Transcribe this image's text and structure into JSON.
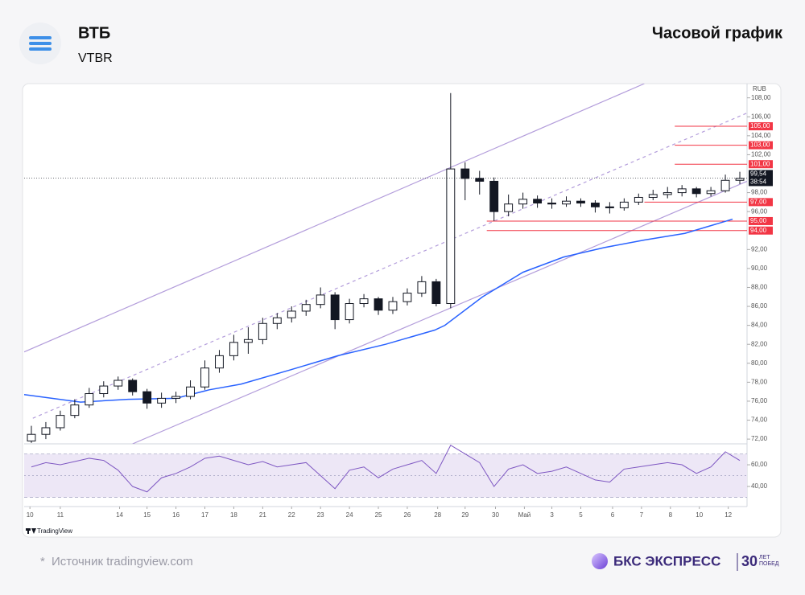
{
  "header": {
    "title": "ВТБ",
    "ticker": "VTBR",
    "chart_label": "Часовой график"
  },
  "chart_data": {
    "type": "candlestick",
    "currency": "RUB",
    "watermark": "TradingView",
    "up_color": "#ffffff",
    "down_color": "#131722",
    "edge_color": "#131722",
    "open": [
      71.8,
      72.5,
      73.2,
      74.5,
      75.6,
      76.8,
      77.6,
      78.2,
      77.0,
      75.8,
      76.3,
      76.5,
      77.5,
      79.5,
      80.8,
      82.2,
      82.5,
      84.2,
      84.8,
      85.5,
      86.2,
      87.2,
      84.6,
      86.3,
      86.8,
      85.6,
      86.5,
      87.4,
      88.6,
      86.3,
      100.5,
      99.5,
      99.2,
      96.0,
      96.8,
      97.3,
      96.9,
      96.8,
      97.1,
      96.9,
      96.5,
      96.4,
      97.0,
      97.5,
      97.8,
      98.0,
      98.4,
      97.9,
      98.2,
      99.3
    ],
    "high": [
      73.4,
      73.8,
      75.0,
      76.2,
      77.4,
      78.1,
      78.6,
      78.4,
      77.3,
      76.9,
      77.0,
      78.2,
      80.3,
      81.4,
      83.0,
      83.8,
      84.8,
      85.3,
      86.0,
      86.7,
      88.0,
      87.5,
      86.8,
      87.3,
      87.0,
      87.0,
      87.9,
      89.2,
      88.9,
      108.5,
      101.2,
      100.3,
      99.6,
      97.8,
      98.0,
      97.7,
      97.4,
      97.6,
      97.4,
      97.2,
      97.0,
      97.4,
      97.9,
      98.3,
      98.6,
      98.8,
      98.6,
      98.6,
      99.9,
      100.2
    ],
    "low": [
      71.6,
      72.0,
      72.9,
      74.2,
      75.3,
      76.4,
      77.2,
      76.6,
      75.2,
      75.3,
      75.8,
      76.2,
      77.2,
      79.0,
      80.3,
      81.0,
      82.0,
      83.6,
      84.3,
      85.0,
      85.8,
      83.6,
      84.2,
      85.9,
      85.1,
      85.2,
      86.1,
      87.0,
      86.0,
      85.8,
      97.2,
      97.8,
      95.0,
      95.5,
      96.3,
      96.4,
      96.3,
      96.5,
      96.5,
      95.9,
      95.8,
      96.1,
      96.7,
      97.2,
      97.4,
      97.6,
      97.5,
      97.6,
      98.0,
      98.9
    ],
    "close": [
      72.5,
      73.2,
      74.5,
      75.6,
      76.8,
      77.6,
      78.2,
      77.0,
      75.8,
      76.3,
      76.5,
      77.5,
      79.5,
      80.8,
      82.2,
      82.5,
      84.2,
      84.8,
      85.5,
      86.2,
      87.2,
      84.6,
      86.3,
      86.8,
      85.6,
      86.5,
      87.4,
      88.6,
      86.3,
      100.5,
      99.5,
      99.2,
      96.0,
      96.8,
      97.3,
      96.9,
      96.8,
      97.1,
      96.9,
      96.5,
      96.4,
      97.0,
      97.5,
      97.8,
      98.0,
      98.4,
      97.9,
      98.2,
      99.3,
      99.5
    ],
    "xlim": [
      0,
      50
    ],
    "ylim": [
      71.5,
      109.5
    ],
    "yticks": [
      {
        "value": 72,
        "label": "72,00"
      },
      {
        "value": 74,
        "label": "74,00"
      },
      {
        "value": 76,
        "label": "76,00"
      },
      {
        "value": 78,
        "label": "78,00"
      },
      {
        "value": 80,
        "label": "80,00"
      },
      {
        "value": 82,
        "label": "82,00"
      },
      {
        "value": 84,
        "label": "84,00"
      },
      {
        "value": 86,
        "label": "86,00"
      },
      {
        "value": 88,
        "label": "88,00"
      },
      {
        "value": 90,
        "label": "90,00"
      },
      {
        "value": 92,
        "label": "92,00"
      },
      {
        "value": 96,
        "label": "96,00"
      },
      {
        "value": 98,
        "label": "98,00"
      },
      {
        "value": 102,
        "label": "102,00"
      },
      {
        "value": 104,
        "label": "104,00"
      },
      {
        "value": 106,
        "label": "106,00"
      },
      {
        "value": 108,
        "label": "108,00"
      }
    ],
    "xticks": [
      {
        "value": 0.4,
        "label": "10"
      },
      {
        "value": 2.5,
        "label": "11"
      },
      {
        "value": 6.6,
        "label": "14"
      },
      {
        "value": 8.5,
        "label": "15"
      },
      {
        "value": 10.5,
        "label": "16"
      },
      {
        "value": 12.5,
        "label": "17"
      },
      {
        "value": 14.5,
        "label": "18"
      },
      {
        "value": 16.5,
        "label": "21"
      },
      {
        "value": 18.5,
        "label": "22"
      },
      {
        "value": 20.5,
        "label": "23"
      },
      {
        "value": 22.5,
        "label": "24"
      },
      {
        "value": 24.5,
        "label": "25"
      },
      {
        "value": 26.5,
        "label": "26"
      },
      {
        "value": 28.6,
        "label": "28"
      },
      {
        "value": 30.5,
        "label": "29"
      },
      {
        "value": 32.6,
        "label": "30"
      },
      {
        "value": 34.6,
        "label": "Май"
      },
      {
        "value": 36.5,
        "label": "3"
      },
      {
        "value": 38.5,
        "label": "5"
      },
      {
        "value": 40.7,
        "label": "6"
      },
      {
        "value": 42.7,
        "label": "7"
      },
      {
        "value": 44.7,
        "label": "8"
      },
      {
        "value": 46.7,
        "label": "10"
      },
      {
        "value": 48.7,
        "label": "12"
      }
    ],
    "moving_average": {
      "color": "#2962ff",
      "x": [
        0,
        3.9,
        7.2,
        10.5,
        12.8,
        15,
        18.4,
        21.7,
        25,
        28.4,
        29.1,
        31.7,
        34.5,
        37.3,
        40.1,
        42.9,
        45.7,
        49
      ],
      "values": [
        76.7,
        75.9,
        76.2,
        76.3,
        77.2,
        77.8,
        79.3,
        80.8,
        82,
        83.5,
        84,
        87,
        89.6,
        91.2,
        92.2,
        93,
        93.7,
        95.2
      ]
    },
    "channel": {
      "color": "#b39ddb",
      "lines": [
        {
          "x": [
            0,
            42.9
          ],
          "values": [
            81.2,
            109.5
          ]
        },
        {
          "x": [
            0.6,
            50
          ],
          "values": [
            74.2,
            106.4
          ],
          "dashed": true
        },
        {
          "x": [
            7.5,
            50
          ],
          "values": [
            71.5,
            99.2
          ]
        }
      ]
    },
    "levels": {
      "color": "#f23645",
      "lines": [
        {
          "value": 105,
          "label": "105,00",
          "x": 45
        },
        {
          "value": 103,
          "label": "103,00",
          "x": 45
        },
        {
          "value": 101,
          "label": "101,00",
          "x": 45
        },
        {
          "value": 97,
          "label": "97,00",
          "x": 42.9
        },
        {
          "value": 95,
          "label": "95,00",
          "x": 32
        },
        {
          "value": 94,
          "label": "94,00",
          "x": 32
        }
      ]
    },
    "last_price": {
      "value": 99.54,
      "label": "99,54",
      "timer": "38:54"
    },
    "rsi": {
      "type": "line",
      "color": "#7e57c2",
      "band_color": "#ede7f6",
      "values": [
        58,
        62,
        60,
        63,
        66,
        64,
        55,
        40,
        35,
        48,
        52,
        58,
        66,
        68,
        64,
        60,
        63,
        58,
        60,
        62,
        50,
        38,
        55,
        58,
        48,
        56,
        60,
        64,
        52,
        78,
        70,
        62,
        40,
        56,
        60,
        52,
        54,
        58,
        52,
        46,
        44,
        56,
        58,
        60,
        62,
        60,
        52,
        58,
        72,
        64
      ],
      "ylim": [
        28.9,
        79.3
      ],
      "yticks": [
        {
          "value": 40,
          "label": "40,00"
        },
        {
          "value": 60,
          "label": "60,00"
        }
      ],
      "band": [
        30,
        70
      ],
      "midline": 50
    }
  },
  "footer": {
    "note_mark": "*",
    "source": "Источник tradingview.com",
    "brand": "БКС ЭКСПРЕСС",
    "anniversary": "30",
    "anniversary_text": "ЛЕТ ПОБЕД"
  }
}
